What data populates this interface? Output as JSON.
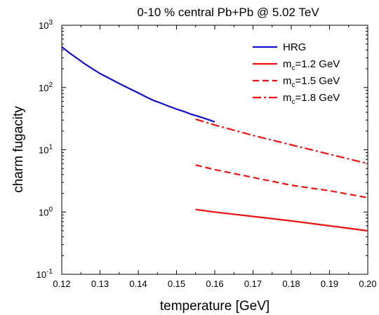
{
  "chart_data": {
    "type": "line",
    "title": "0-10 % central Pb+Pb @ 5.02 TeV",
    "xlabel": "temperature [GeV]",
    "ylabel": "charm fugacity",
    "xlim": [
      0.12,
      0.2
    ],
    "ylim": [
      0.1,
      1000
    ],
    "yscale": "log",
    "grid": false,
    "legend_position": "top-right",
    "x_ticks": [
      "0.12",
      "0.13",
      "0.14",
      "0.15",
      "0.16",
      "0.17",
      "0.18",
      "0.19",
      "0.20"
    ],
    "y_ticks": [
      {
        "base": "10",
        "exp": "-1",
        "value": 0.1
      },
      {
        "base": "10",
        "exp": "0",
        "value": 1
      },
      {
        "base": "10",
        "exp": "1",
        "value": 10
      },
      {
        "base": "10",
        "exp": "2",
        "value": 100
      },
      {
        "base": "10",
        "exp": "3",
        "value": 1000
      }
    ],
    "series": [
      {
        "name": "HRG",
        "label_main": "HRG",
        "label_sub": "",
        "label_rest": "",
        "color": "#1010d0",
        "dash": "solid",
        "x": [
          0.12,
          0.122,
          0.124,
          0.126,
          0.128,
          0.13,
          0.132,
          0.134,
          0.136,
          0.138,
          0.14,
          0.142,
          0.144,
          0.146,
          0.148,
          0.15,
          0.152,
          0.154,
          0.156,
          0.158,
          0.16
        ],
        "y": [
          450,
          360,
          295,
          240,
          200,
          168,
          145,
          125,
          108,
          94,
          82,
          71,
          62,
          56,
          50,
          45,
          41,
          37,
          34,
          31,
          28
        ]
      },
      {
        "name": "m_c=1.2 GeV",
        "label_main": "m",
        "label_sub": "c",
        "label_rest": "=1.2 GeV",
        "color": "#ee1111",
        "dash": "solid",
        "x": [
          0.155,
          0.16,
          0.17,
          0.18,
          0.19,
          0.2
        ],
        "y": [
          1.1,
          1.0,
          0.85,
          0.72,
          0.6,
          0.5
        ]
      },
      {
        "name": "m_c=1.5 GeV",
        "label_main": "m",
        "label_sub": "c",
        "label_rest": "=1.5 GeV",
        "color": "#ee1111",
        "dash": "dash",
        "x": [
          0.155,
          0.16,
          0.17,
          0.18,
          0.19,
          0.2
        ],
        "y": [
          5.7,
          4.8,
          3.6,
          2.7,
          2.2,
          1.7
        ]
      },
      {
        "name": "m_c=1.8 GeV",
        "label_main": "m",
        "label_sub": "c",
        "label_rest": "=1.8 GeV",
        "color": "#ee1111",
        "dash": "dashdot",
        "x": [
          0.155,
          0.16,
          0.17,
          0.18,
          0.19,
          0.2
        ],
        "y": [
          31,
          25,
          17,
          12,
          8.5,
          6.0
        ]
      }
    ]
  }
}
